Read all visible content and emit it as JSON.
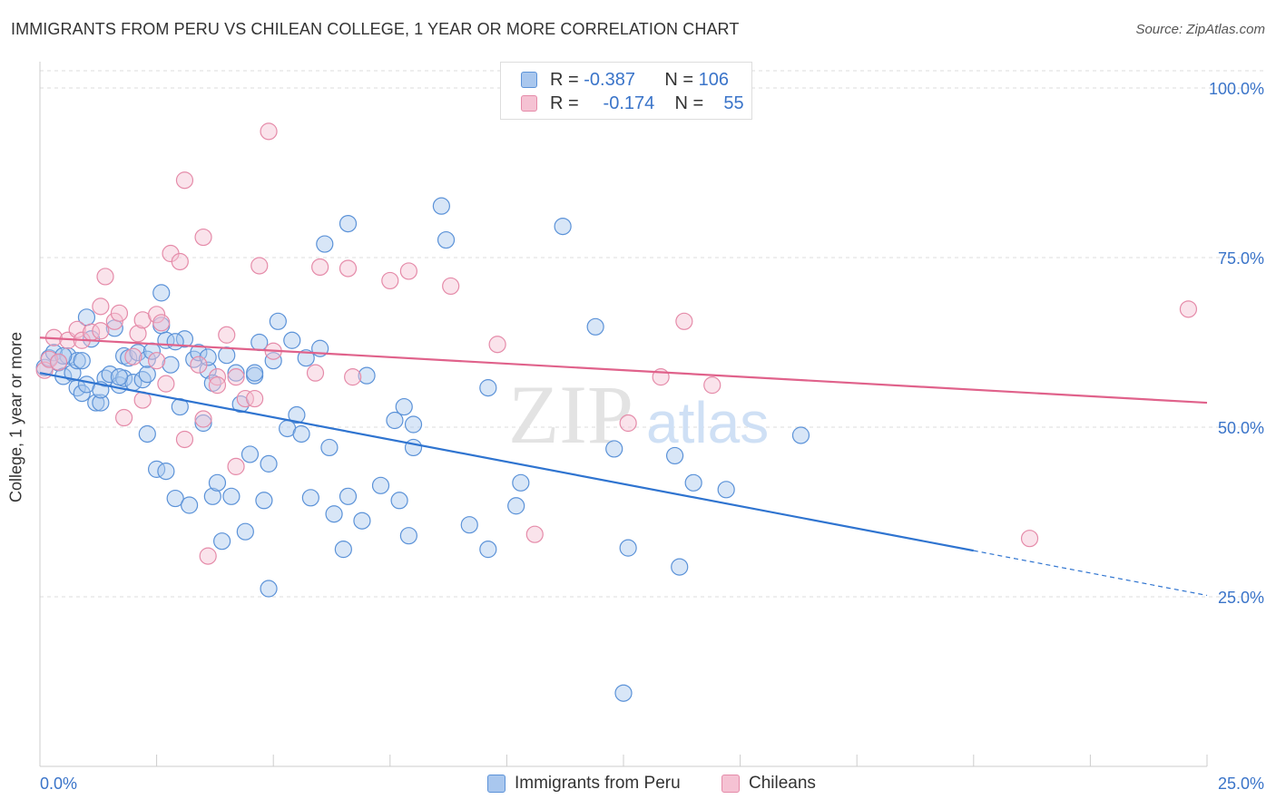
{
  "header": {
    "title": "IMMIGRANTS FROM PERU VS CHILEAN COLLEGE, 1 YEAR OR MORE CORRELATION CHART",
    "source": "Source: ZipAtlas.com"
  },
  "legend": {
    "row1": {
      "r_label": "R =",
      "r_value": "-0.387",
      "n_label": "N =",
      "n_value": "106"
    },
    "row2": {
      "r_label": "R =",
      "r_value": "-0.174",
      "n_label": "N =",
      "n_value": "55"
    }
  },
  "bottom_legend": {
    "series1": "Immigrants from Peru",
    "series2": "Chileans"
  },
  "watermark": {
    "zip": "ZIP",
    "atlas": "atlas"
  },
  "colors": {
    "blue_fill": "#a9c7ee",
    "blue_stroke": "#5b92d8",
    "blue_line": "#2f74d0",
    "pink_fill": "#f5c2d3",
    "pink_stroke": "#e58ba9",
    "pink_line": "#e0628b",
    "tick_text": "#3a74c9"
  },
  "chart_data": {
    "type": "scatter",
    "title": "IMMIGRANTS FROM PERU VS CHILEAN COLLEGE, 1 YEAR OR MORE CORRELATION CHART",
    "xlabel": "",
    "ylabel": "College, 1 year or more",
    "xlim": [
      0,
      25
    ],
    "ylim": [
      0,
      105
    ],
    "x_tick_labels": [
      "0.0%",
      "25.0%"
    ],
    "y_ticks": [
      25,
      50,
      75,
      100
    ],
    "y_tick_labels": [
      "25.0%",
      "50.0%",
      "75.0%",
      "100.0%"
    ],
    "grid": true,
    "legend_position": "top-center",
    "series": [
      {
        "name": "Immigrants from Peru",
        "R": -0.387,
        "N": 106,
        "trend": {
          "x0": 0,
          "y0": 58.0,
          "x1": 20,
          "y1": 31.8,
          "dashed_to_x": 25,
          "dashed_to_y": 25.2
        },
        "points": [
          [
            0.1,
            58.8
          ],
          [
            0.2,
            60.2
          ],
          [
            0.3,
            61.0
          ],
          [
            0.4,
            59.5
          ],
          [
            0.5,
            57.5
          ],
          [
            0.6,
            60.5
          ],
          [
            0.7,
            58.0
          ],
          [
            0.8,
            59.8
          ],
          [
            0.8,
            55.8
          ],
          [
            0.9,
            55.0
          ],
          [
            1.0,
            56.3
          ],
          [
            1.0,
            66.2
          ],
          [
            1.1,
            63.0
          ],
          [
            1.2,
            53.6
          ],
          [
            1.3,
            53.6
          ],
          [
            1.4,
            57.2
          ],
          [
            1.5,
            57.8
          ],
          [
            1.6,
            64.6
          ],
          [
            1.7,
            56.2
          ],
          [
            1.8,
            57.2
          ],
          [
            1.8,
            60.5
          ],
          [
            1.9,
            60.2
          ],
          [
            2.0,
            56.6
          ],
          [
            2.1,
            61.0
          ],
          [
            2.2,
            57.0
          ],
          [
            2.3,
            57.8
          ],
          [
            2.3,
            60.0
          ],
          [
            2.3,
            49.0
          ],
          [
            2.4,
            61.2
          ],
          [
            2.5,
            43.8
          ],
          [
            2.6,
            69.8
          ],
          [
            2.6,
            65.0
          ],
          [
            2.7,
            62.8
          ],
          [
            2.7,
            43.5
          ],
          [
            2.8,
            59.2
          ],
          [
            2.9,
            39.5
          ],
          [
            3.0,
            53.0
          ],
          [
            3.1,
            63.0
          ],
          [
            3.2,
            38.5
          ],
          [
            3.3,
            60.0
          ],
          [
            3.4,
            61.0
          ],
          [
            3.5,
            50.6
          ],
          [
            3.6,
            58.4
          ],
          [
            3.7,
            56.5
          ],
          [
            3.7,
            39.8
          ],
          [
            3.8,
            41.8
          ],
          [
            3.9,
            33.2
          ],
          [
            4.0,
            60.6
          ],
          [
            4.1,
            39.8
          ],
          [
            4.2,
            58.0
          ],
          [
            4.3,
            53.4
          ],
          [
            4.4,
            34.6
          ],
          [
            4.5,
            46.0
          ],
          [
            4.6,
            57.6
          ],
          [
            4.7,
            62.5
          ],
          [
            4.8,
            39.2
          ],
          [
            4.9,
            44.6
          ],
          [
            4.9,
            26.2
          ],
          [
            5.0,
            59.8
          ],
          [
            5.1,
            65.6
          ],
          [
            5.3,
            49.8
          ],
          [
            5.4,
            62.8
          ],
          [
            5.5,
            51.8
          ],
          [
            5.6,
            49.0
          ],
          [
            5.7,
            60.2
          ],
          [
            5.8,
            39.6
          ],
          [
            6.0,
            61.6
          ],
          [
            6.1,
            77.0
          ],
          [
            6.2,
            47.0
          ],
          [
            6.3,
            37.2
          ],
          [
            6.5,
            32.0
          ],
          [
            6.6,
            80.0
          ],
          [
            6.6,
            39.8
          ],
          [
            6.9,
            36.2
          ],
          [
            7.0,
            57.6
          ],
          [
            7.3,
            41.4
          ],
          [
            7.6,
            51.0
          ],
          [
            7.7,
            39.2
          ],
          [
            7.8,
            53.0
          ],
          [
            7.9,
            34.0
          ],
          [
            8.0,
            47.0
          ],
          [
            8.0,
            50.4
          ],
          [
            8.6,
            82.6
          ],
          [
            8.7,
            77.6
          ],
          [
            9.2,
            35.6
          ],
          [
            9.6,
            32.0
          ],
          [
            9.6,
            55.8
          ],
          [
            10.2,
            38.4
          ],
          [
            10.3,
            41.8
          ],
          [
            11.2,
            79.6
          ],
          [
            11.9,
            64.8
          ],
          [
            12.3,
            46.8
          ],
          [
            12.5,
            10.8
          ],
          [
            12.6,
            32.2
          ],
          [
            13.6,
            45.8
          ],
          [
            13.7,
            29.4
          ],
          [
            14.0,
            41.8
          ],
          [
            14.7,
            40.8
          ],
          [
            16.3,
            48.8
          ],
          [
            1.3,
            55.5
          ],
          [
            0.9,
            59.8
          ],
          [
            2.9,
            62.6
          ],
          [
            0.5,
            60.5
          ],
          [
            3.6,
            60.3
          ],
          [
            4.6,
            58.0
          ],
          [
            1.7,
            57.4
          ]
        ]
      },
      {
        "name": "Chileans",
        "R": -0.174,
        "N": 55,
        "trend": {
          "x0": 0,
          "y0": 63.2,
          "x1": 25,
          "y1": 53.6
        },
        "points": [
          [
            0.1,
            58.4
          ],
          [
            0.2,
            60.0
          ],
          [
            0.3,
            63.2
          ],
          [
            0.4,
            59.6
          ],
          [
            0.6,
            62.8
          ],
          [
            0.8,
            64.4
          ],
          [
            0.9,
            62.8
          ],
          [
            1.1,
            64.0
          ],
          [
            1.3,
            64.2
          ],
          [
            1.3,
            67.8
          ],
          [
            1.4,
            72.2
          ],
          [
            1.6,
            65.6
          ],
          [
            1.7,
            66.8
          ],
          [
            1.8,
            51.4
          ],
          [
            2.0,
            60.4
          ],
          [
            2.1,
            63.8
          ],
          [
            2.2,
            65.8
          ],
          [
            2.2,
            54.0
          ],
          [
            2.5,
            66.6
          ],
          [
            2.5,
            59.8
          ],
          [
            2.6,
            65.4
          ],
          [
            2.7,
            56.4
          ],
          [
            2.8,
            75.6
          ],
          [
            3.0,
            74.4
          ],
          [
            3.1,
            48.2
          ],
          [
            3.1,
            86.4
          ],
          [
            3.4,
            59.2
          ],
          [
            3.5,
            51.2
          ],
          [
            3.5,
            78.0
          ],
          [
            3.6,
            31.0
          ],
          [
            3.8,
            57.4
          ],
          [
            3.8,
            56.2
          ],
          [
            4.0,
            63.6
          ],
          [
            4.2,
            44.2
          ],
          [
            4.2,
            57.4
          ],
          [
            4.4,
            54.2
          ],
          [
            4.6,
            54.2
          ],
          [
            4.7,
            73.8
          ],
          [
            4.9,
            93.6
          ],
          [
            5.0,
            61.2
          ],
          [
            5.9,
            58.0
          ],
          [
            6.0,
            73.6
          ],
          [
            6.6,
            73.4
          ],
          [
            6.7,
            57.4
          ],
          [
            7.5,
            71.6
          ],
          [
            7.9,
            73.0
          ],
          [
            8.8,
            70.8
          ],
          [
            9.8,
            62.2
          ],
          [
            10.6,
            34.2
          ],
          [
            12.6,
            50.6
          ],
          [
            13.3,
            57.4
          ],
          [
            13.8,
            65.6
          ],
          [
            14.4,
            56.2
          ],
          [
            21.2,
            33.6
          ],
          [
            24.6,
            67.4
          ]
        ]
      }
    ]
  }
}
